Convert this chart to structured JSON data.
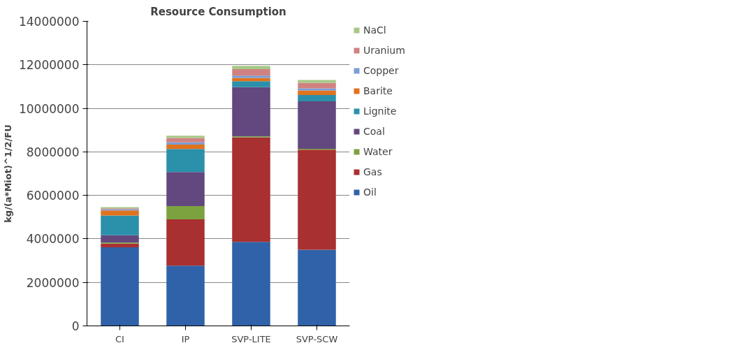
{
  "chart_data": {
    "type": "bar",
    "title": "Resource Consumption",
    "ylabel": "kg/(a*Miot)^1/2/FU",
    "stacked": true,
    "categories": [
      "CI",
      "IP",
      "SVP-LITE",
      "SVP-SCW"
    ],
    "series": [
      {
        "name": "Oil",
        "color": "#2f62a8",
        "values": [
          3610000,
          2770000,
          3860000,
          3500000
        ]
      },
      {
        "name": "Gas",
        "color": "#a83030",
        "values": [
          170000,
          2130000,
          4800000,
          4600000
        ]
      },
      {
        "name": "Water",
        "color": "#7ba23f",
        "values": [
          50000,
          610000,
          50000,
          40000
        ]
      },
      {
        "name": "Coal",
        "color": "#62487f",
        "values": [
          340000,
          1560000,
          2260000,
          2180000
        ]
      },
      {
        "name": "Lignite",
        "color": "#2b90aa",
        "values": [
          900000,
          1060000,
          280000,
          290000
        ]
      },
      {
        "name": "Barite",
        "color": "#e0731e",
        "values": [
          240000,
          200000,
          150000,
          210000
        ]
      },
      {
        "name": "Copper",
        "color": "#7a9ed6",
        "values": [
          50000,
          110000,
          100000,
          100000
        ]
      },
      {
        "name": "Uranium",
        "color": "#d08282",
        "values": [
          40000,
          200000,
          300000,
          250000
        ]
      },
      {
        "name": "NaCl",
        "color": "#a8c888",
        "values": [
          60000,
          100000,
          150000,
          130000
        ]
      }
    ],
    "ylim": [
      0,
      14000000
    ],
    "yticks": [
      0,
      2000000,
      4000000,
      6000000,
      8000000,
      10000000,
      12000000,
      14000000
    ],
    "grid": "y",
    "legend": "right"
  }
}
